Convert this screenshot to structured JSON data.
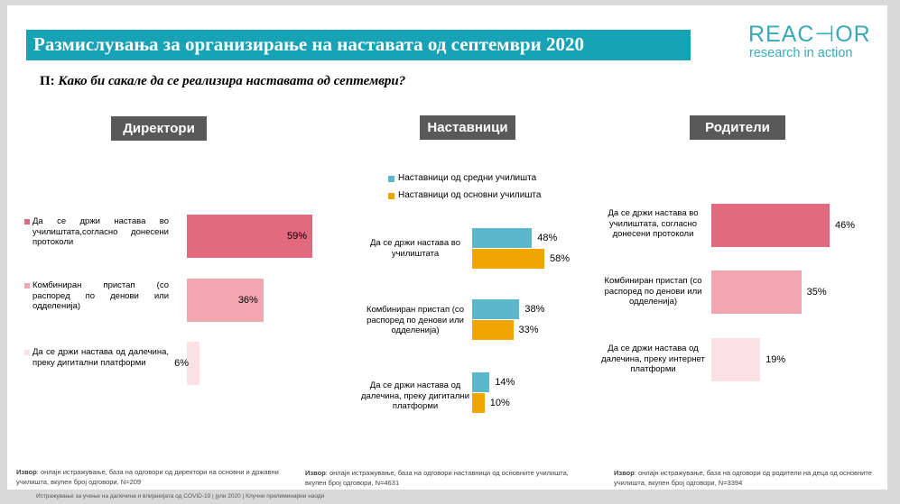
{
  "header": {
    "title": "Размислувања за организирање на наставата од септември 2020",
    "logo_main": "REAC⊣OR",
    "logo_sub": "research in action"
  },
  "question": {
    "prefix": "П:",
    "text": "Како би сакале да се реализира наставата од септември?"
  },
  "colors": {
    "title_bar": "#17a2b5",
    "panel_head": "#595959",
    "rose_dark": "#e26a7f",
    "rose_mid": "#f0a7b2",
    "rose_light": "#fbe1e5",
    "teal": "#5bb7cc",
    "orange": "#f0a500"
  },
  "chart_data": [
    {
      "type": "bar",
      "orientation": "horizontal",
      "title": "Директори",
      "categories": [
        "Да се држи настава во училиштата,согласно донесени протоколи",
        "Комбиниран пристап (со распоред по денови или одделенија)",
        "Да се држи настава од далечина, преку дигитални платформи"
      ],
      "values": [
        59,
        36,
        6
      ],
      "value_labels": [
        "59%",
        "36%",
        "6%"
      ],
      "xlim": [
        0,
        60
      ],
      "source": "онлајн истражување, база на одговори од директори на основни и државни училишта, вкупен број одговори, N=209"
    },
    {
      "type": "bar",
      "orientation": "horizontal",
      "title": "Наставници",
      "categories": [
        "Да се држи настава во училиштата",
        "Комбиниран пристап (со распоред по денови или одделенија)",
        "Да се држи настава од далечина, преку дигитални платформи"
      ],
      "series": [
        {
          "name": "Наставници од средни училишта",
          "values": [
            48,
            38,
            14
          ],
          "value_labels": [
            "48%",
            "38%",
            "14%"
          ]
        },
        {
          "name": "Наставници од основни училишта",
          "values": [
            58,
            33,
            10
          ],
          "value_labels": [
            "58%",
            "33%",
            "10%"
          ]
        }
      ],
      "xlim": [
        0,
        60
      ],
      "legend": "top",
      "source": "онлајн истражување, база на одговори наставници од основните училишта, вкупен број одговори, N=4631"
    },
    {
      "type": "bar",
      "orientation": "horizontal",
      "title": "Родители",
      "categories": [
        "Да се држи настава во училиштата, согласно донесени протоколи",
        "Комбиниран пристап (со распоред по денови или одделенија)",
        "Да се држи настава од далечина, преку интернет платформи"
      ],
      "values": [
        46,
        35,
        19
      ],
      "value_labels": [
        "46%",
        "35%",
        "19%"
      ],
      "xlim": [
        0,
        60
      ],
      "source": "онлајн истражување, база на одговори од родители на деца од основните училишта, вкупен број одговори, N=3394"
    }
  ],
  "source_label": "Извор",
  "footer": "Истражување за учење на далечина и влијанијата од COVID-19  |  јули 2020 |  Клучни прелиминарни наоди"
}
